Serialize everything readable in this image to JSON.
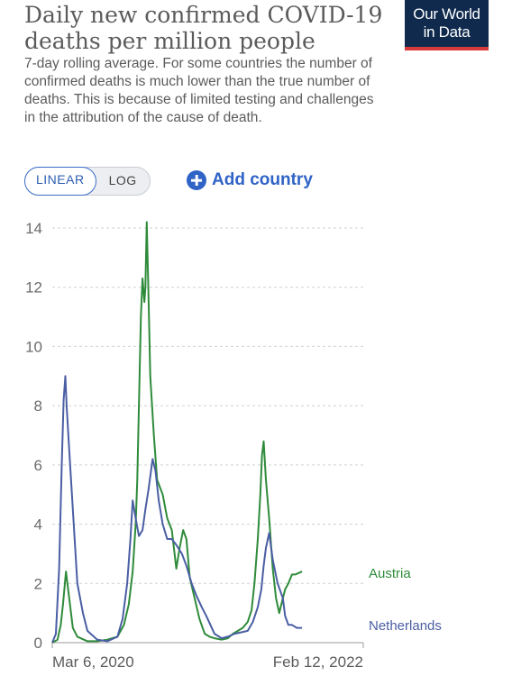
{
  "header": {
    "title": "Daily new confirmed COVID-19 deaths per million people",
    "subtitle": "7-day rolling average. For some countries the number of confirmed deaths is much lower than the true number of deaths. This is because of limited testing and challenges in the attribution of the cause of death.",
    "logo_line1": "Our World",
    "logo_line2": "in Data"
  },
  "controls": {
    "linear_label": "LINEAR",
    "log_label": "LOG",
    "add_country_label": "Add country"
  },
  "colors": {
    "austria": "#2e8b3a",
    "netherlands": "#4a5ea3",
    "grid": "#d0d0d0",
    "axis": "#999999",
    "accent": "#2f63c6"
  },
  "chart_data": {
    "type": "line",
    "title": "Daily new confirmed COVID-19 deaths per million people",
    "xlim": [
      "2020-02-28",
      "2022-10-10"
    ],
    "ylim": [
      0,
      14
    ],
    "y_ticks": [
      0,
      2,
      4,
      6,
      8,
      10,
      12,
      14
    ],
    "x_tick_labels": [
      "Mar 6, 2020",
      "Feb 12, 2022"
    ],
    "grid": "horizontal dashed",
    "series": [
      {
        "name": "Austria",
        "color": "#2e8b3a",
        "x": [
          "2020-02-28",
          "2020-03-15",
          "2020-03-25",
          "2020-04-01",
          "2020-04-06",
          "2020-04-10",
          "2020-04-20",
          "2020-05-01",
          "2020-05-15",
          "2020-06-15",
          "2020-07-15",
          "2020-08-15",
          "2020-09-15",
          "2020-10-05",
          "2020-10-20",
          "2020-11-01",
          "2020-11-10",
          "2020-11-15",
          "2020-11-20",
          "2020-11-26",
          "2020-12-01",
          "2020-12-07",
          "2020-12-10",
          "2020-12-14",
          "2020-12-20",
          "2020-12-25",
          "2021-01-05",
          "2021-01-15",
          "2021-02-01",
          "2021-02-15",
          "2021-03-01",
          "2021-03-15",
          "2021-03-25",
          "2021-04-05",
          "2021-04-15",
          "2021-04-25",
          "2021-05-10",
          "2021-05-25",
          "2021-06-10",
          "2021-06-25",
          "2021-07-10",
          "2021-08-01",
          "2021-08-20",
          "2021-09-05",
          "2021-09-20",
          "2021-10-05",
          "2021-10-20",
          "2021-11-01",
          "2021-11-10",
          "2021-11-20",
          "2021-11-28",
          "2021-12-03",
          "2021-12-08",
          "2021-12-15",
          "2021-12-25",
          "2022-01-05",
          "2022-01-15",
          "2022-01-25",
          "2022-02-03",
          "2022-02-12",
          "2022-02-22",
          "2022-03-05",
          "2022-03-15",
          "2022-03-25",
          "2022-04-05"
        ],
        "values": [
          0,
          0.1,
          0.6,
          1.3,
          1.9,
          2.4,
          1.5,
          0.5,
          0.2,
          0.05,
          0.05,
          0.1,
          0.2,
          0.6,
          1.3,
          2.4,
          4.0,
          5.5,
          8.0,
          11.0,
          12.3,
          11.5,
          12.0,
          14.2,
          11.5,
          9.0,
          7.0,
          5.5,
          5.0,
          4.2,
          3.8,
          2.5,
          3.2,
          3.8,
          3.5,
          2.2,
          1.5,
          0.8,
          0.3,
          0.2,
          0.15,
          0.1,
          0.15,
          0.3,
          0.4,
          0.5,
          0.7,
          1.1,
          2.0,
          3.5,
          5.0,
          6.3,
          6.8,
          5.5,
          4.2,
          2.5,
          1.5,
          1.0,
          1.4,
          1.8,
          2.0,
          2.3,
          2.3,
          2.35,
          2.4
        ]
      },
      {
        "name": "Netherlands",
        "color": "#4a5ea3",
        "x": [
          "2020-02-28",
          "2020-03-10",
          "2020-03-20",
          "2020-03-28",
          "2020-04-03",
          "2020-04-08",
          "2020-04-12",
          "2020-04-20",
          "2020-05-01",
          "2020-05-15",
          "2020-06-01",
          "2020-06-15",
          "2020-07-15",
          "2020-08-15",
          "2020-09-15",
          "2020-10-01",
          "2020-10-15",
          "2020-10-25",
          "2020-11-01",
          "2020-11-10",
          "2020-11-20",
          "2020-12-01",
          "2020-12-10",
          "2020-12-20",
          "2021-01-01",
          "2021-01-10",
          "2021-01-20",
          "2021-02-01",
          "2021-02-15",
          "2021-03-01",
          "2021-03-15",
          "2021-04-01",
          "2021-04-15",
          "2021-05-01",
          "2021-05-15",
          "2021-06-01",
          "2021-06-15",
          "2021-07-10",
          "2021-08-01",
          "2021-08-20",
          "2021-09-10",
          "2021-10-01",
          "2021-10-20",
          "2021-11-05",
          "2021-11-20",
          "2021-12-01",
          "2021-12-08",
          "2021-12-15",
          "2021-12-25",
          "2022-01-05",
          "2022-01-20",
          "2022-02-05",
          "2022-02-12",
          "2022-02-22",
          "2022-03-05",
          "2022-03-20",
          "2022-04-05"
        ],
        "values": [
          0,
          0.3,
          2.5,
          6.0,
          8.2,
          9.0,
          8.0,
          6.5,
          4.5,
          2.0,
          1.0,
          0.4,
          0.1,
          0.05,
          0.2,
          0.8,
          2.0,
          3.5,
          4.8,
          4.2,
          3.6,
          3.8,
          4.5,
          5.2,
          6.2,
          5.8,
          4.8,
          4.0,
          3.5,
          3.5,
          3.3,
          3.0,
          2.6,
          2.0,
          1.6,
          1.2,
          0.9,
          0.3,
          0.15,
          0.2,
          0.3,
          0.35,
          0.4,
          0.7,
          1.2,
          1.8,
          2.6,
          3.2,
          3.7,
          2.8,
          2.0,
          1.5,
          0.9,
          0.6,
          0.6,
          0.5,
          0.5
        ]
      }
    ]
  }
}
